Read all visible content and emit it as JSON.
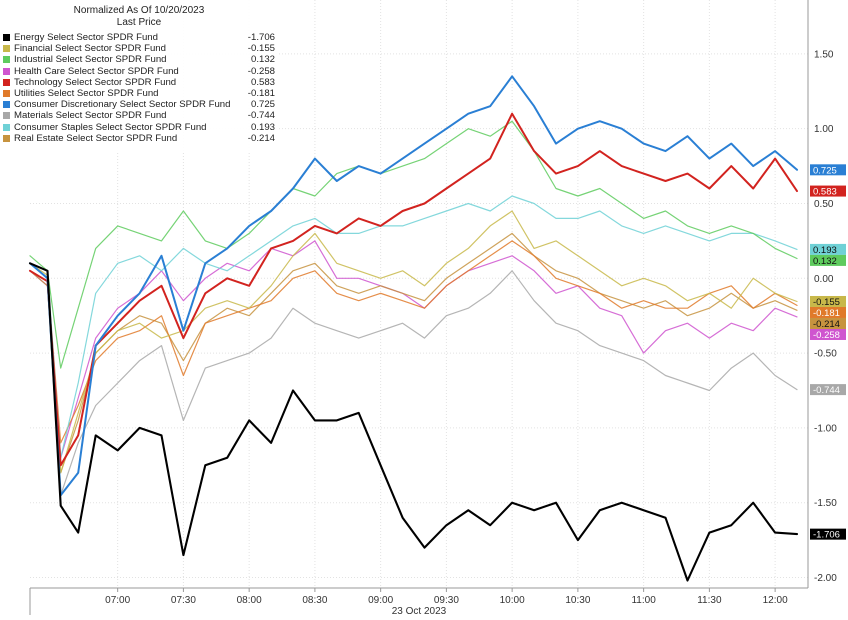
{
  "legend": {
    "title_line1": "Normalized As Of 10/20/2023",
    "title_line2": "Last Price"
  },
  "chart_data": {
    "type": "line",
    "title": "",
    "xlabel": "23 Oct 2023",
    "ylabel": "",
    "x_ticks": [
      "07:00",
      "07:30",
      "08:00",
      "08:30",
      "09:00",
      "09:30",
      "10:00",
      "10:30",
      "11:00",
      "11:30",
      "12:00"
    ],
    "xlim": [
      "06:20",
      "12:15"
    ],
    "y_ticks": [
      1.5,
      1.0,
      0.5,
      0.0,
      -0.5,
      -1.0,
      -1.5,
      -2.0
    ],
    "y_tick_labels": [
      "1.50",
      "1.00",
      "0.50",
      "0.00",
      "-0.50",
      "-1.00",
      "-1.50",
      "-2.00"
    ],
    "ylim": [
      -2.07,
      1.86
    ],
    "grid": true,
    "legend_position": "top-left",
    "x": [
      "06:20",
      "06:28",
      "06:34",
      "06:42",
      "06:50",
      "07:00",
      "07:10",
      "07:20",
      "07:30",
      "07:40",
      "07:50",
      "08:00",
      "08:10",
      "08:20",
      "08:30",
      "08:40",
      "08:50",
      "09:00",
      "09:10",
      "09:20",
      "09:30",
      "09:40",
      "09:50",
      "10:00",
      "10:10",
      "10:20",
      "10:30",
      "10:40",
      "10:50",
      "11:00",
      "11:10",
      "11:20",
      "11:30",
      "11:40",
      "11:50",
      "12:00",
      "12:10"
    ],
    "series": [
      {
        "name": "Energy Select Sector SPDR Fund",
        "last": "-1.706",
        "color": "#000000",
        "values": [
          0.1,
          0.05,
          -1.52,
          -1.7,
          -1.05,
          -1.15,
          -1.0,
          -1.05,
          -1.85,
          -1.25,
          -1.2,
          -0.95,
          -1.1,
          -0.75,
          -0.95,
          -0.95,
          -0.9,
          -1.25,
          -1.6,
          -1.8,
          -1.65,
          -1.55,
          -1.65,
          -1.5,
          -1.55,
          -1.5,
          -1.75,
          -1.55,
          -1.5,
          -1.55,
          -1.6,
          -2.02,
          -1.7,
          -1.65,
          -1.5,
          -1.7,
          -1.71
        ]
      },
      {
        "name": "Financial Select Sector SPDR Fund",
        "last": "-0.155",
        "color": "#c8b84a",
        "values": [
          0.1,
          0.02,
          -1.3,
          -0.9,
          -0.5,
          -0.35,
          -0.3,
          -0.4,
          -0.35,
          -0.2,
          -0.15,
          -0.2,
          -0.05,
          0.15,
          0.3,
          0.1,
          0.05,
          0.0,
          0.05,
          -0.05,
          0.1,
          0.2,
          0.35,
          0.45,
          0.2,
          0.25,
          0.15,
          0.05,
          -0.05,
          0.0,
          -0.05,
          -0.15,
          -0.1,
          -0.2,
          0.0,
          -0.1,
          -0.155
        ]
      },
      {
        "name": "Industrial Select Sector SPDR Fund",
        "last": "0.132",
        "color": "#5ecb5e",
        "values": [
          0.15,
          0.05,
          -0.6,
          -0.2,
          0.2,
          0.35,
          0.3,
          0.25,
          0.45,
          0.25,
          0.2,
          0.3,
          0.45,
          0.6,
          0.55,
          0.7,
          0.75,
          0.7,
          0.75,
          0.8,
          0.9,
          1.0,
          0.95,
          1.05,
          0.85,
          0.6,
          0.55,
          0.6,
          0.5,
          0.4,
          0.45,
          0.35,
          0.3,
          0.35,
          0.3,
          0.2,
          0.132
        ]
      },
      {
        "name": "Health Care Select Sector SPDR Fund",
        "last": "-0.258",
        "color": "#cf55cf",
        "values": [
          0.05,
          -0.05,
          -1.2,
          -0.8,
          -0.4,
          -0.2,
          -0.1,
          0.05,
          -0.15,
          0.0,
          0.1,
          0.05,
          0.2,
          0.15,
          0.25,
          0.0,
          0.0,
          -0.05,
          -0.1,
          -0.2,
          -0.05,
          0.05,
          0.1,
          0.15,
          0.05,
          -0.1,
          -0.05,
          -0.2,
          -0.25,
          -0.5,
          -0.35,
          -0.3,
          -0.4,
          -0.3,
          -0.35,
          -0.2,
          -0.258
        ]
      },
      {
        "name": "Technology Select Sector SPDR Fund",
        "last": "0.583",
        "color": "#d2231f",
        "values": [
          0.05,
          -0.02,
          -1.25,
          -1.05,
          -0.45,
          -0.3,
          -0.15,
          -0.05,
          -0.4,
          -0.1,
          0.0,
          -0.05,
          0.2,
          0.25,
          0.35,
          0.3,
          0.4,
          0.35,
          0.45,
          0.5,
          0.6,
          0.7,
          0.8,
          1.1,
          0.85,
          0.7,
          0.75,
          0.85,
          0.75,
          0.7,
          0.65,
          0.7,
          0.6,
          0.75,
          0.6,
          0.8,
          0.583
        ]
      },
      {
        "name": "Utilities Select Sector SPDR Fund",
        "last": "-0.181",
        "color": "#e07a2a",
        "values": [
          0.05,
          -0.02,
          -1.1,
          -0.85,
          -0.55,
          -0.4,
          -0.35,
          -0.25,
          -0.65,
          -0.3,
          -0.25,
          -0.2,
          -0.15,
          0.0,
          0.05,
          -0.1,
          -0.15,
          -0.1,
          -0.15,
          -0.2,
          -0.05,
          0.05,
          0.15,
          0.25,
          0.15,
          0.0,
          -0.05,
          -0.1,
          -0.2,
          -0.15,
          -0.2,
          -0.2,
          -0.1,
          -0.05,
          -0.2,
          -0.1,
          -0.181
        ]
      },
      {
        "name": "Consumer Discretionary Select Sector SPDR Fund",
        "last": "0.725",
        "color": "#2a7fd4",
        "values": [
          0.1,
          0.0,
          -1.45,
          -1.3,
          -0.45,
          -0.25,
          -0.1,
          0.15,
          -0.35,
          0.1,
          0.2,
          0.35,
          0.45,
          0.6,
          0.8,
          0.65,
          0.75,
          0.7,
          0.8,
          0.9,
          1.0,
          1.1,
          1.15,
          1.35,
          1.15,
          0.9,
          1.0,
          1.05,
          1.0,
          0.9,
          0.85,
          0.95,
          0.8,
          0.9,
          0.75,
          0.85,
          0.725
        ]
      },
      {
        "name": "Materials Select Sector SPDR Fund",
        "last": "-0.744",
        "color": "#a8a8a8",
        "values": [
          0.05,
          -0.05,
          -1.45,
          -1.1,
          -0.85,
          -0.7,
          -0.55,
          -0.45,
          -0.95,
          -0.6,
          -0.55,
          -0.5,
          -0.4,
          -0.2,
          -0.3,
          -0.35,
          -0.4,
          -0.35,
          -0.3,
          -0.4,
          -0.25,
          -0.2,
          -0.1,
          0.05,
          -0.15,
          -0.3,
          -0.35,
          -0.45,
          -0.5,
          -0.55,
          -0.65,
          -0.7,
          -0.75,
          -0.6,
          -0.5,
          -0.65,
          -0.744
        ]
      },
      {
        "name": "Consumer Staples Select Sector SPDR Fund",
        "last": "0.193",
        "color": "#6fd1d6",
        "values": [
          0.1,
          0.05,
          -1.2,
          -0.7,
          -0.1,
          0.1,
          0.15,
          0.05,
          0.2,
          0.1,
          0.05,
          0.15,
          0.25,
          0.35,
          0.4,
          0.3,
          0.3,
          0.35,
          0.35,
          0.4,
          0.45,
          0.5,
          0.45,
          0.55,
          0.5,
          0.4,
          0.4,
          0.45,
          0.35,
          0.3,
          0.35,
          0.3,
          0.25,
          0.3,
          0.3,
          0.25,
          0.193
        ]
      },
      {
        "name": "Real Estate Select Sector SPDR Fund",
        "last": "-0.214",
        "color": "#c7933f",
        "values": [
          0.05,
          -0.05,
          -1.3,
          -0.95,
          -0.5,
          -0.35,
          -0.25,
          -0.3,
          -0.55,
          -0.3,
          -0.2,
          -0.25,
          -0.1,
          0.05,
          0.1,
          -0.05,
          -0.1,
          -0.05,
          -0.1,
          -0.15,
          0.0,
          0.1,
          0.2,
          0.3,
          0.15,
          0.05,
          0.0,
          -0.1,
          -0.15,
          -0.2,
          -0.15,
          -0.25,
          -0.2,
          -0.1,
          -0.2,
          -0.15,
          -0.214
        ]
      }
    ]
  }
}
